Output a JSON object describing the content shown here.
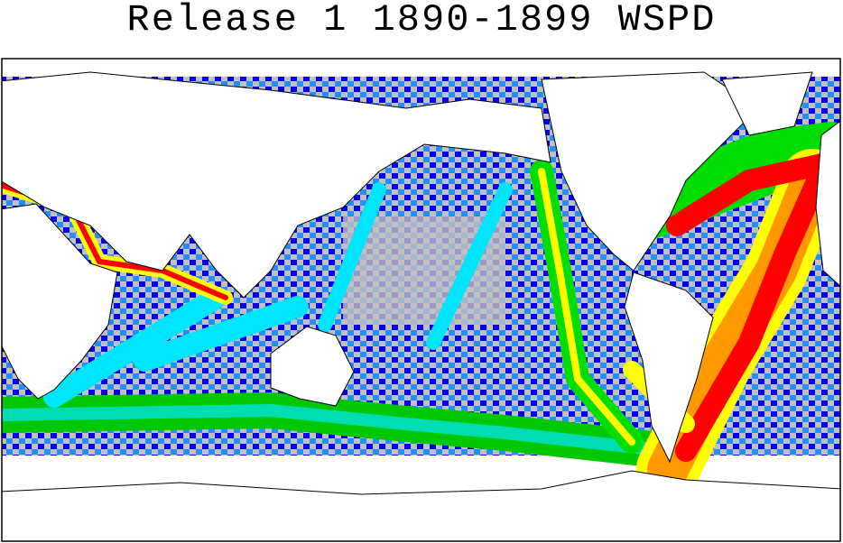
{
  "title": "Release 1 1890-1899 WSPD"
}
